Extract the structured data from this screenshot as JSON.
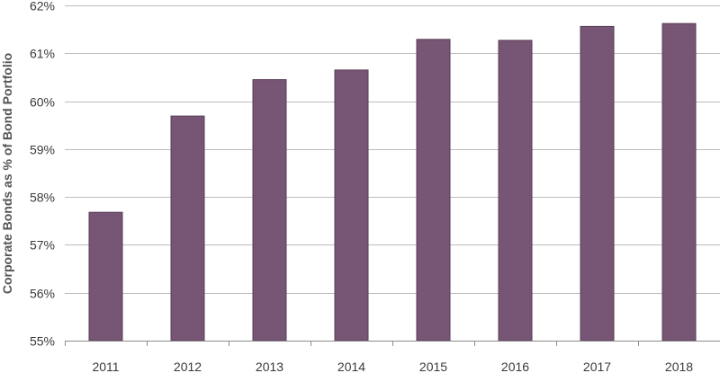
{
  "chart_data": {
    "type": "bar",
    "title": "",
    "xlabel": "",
    "ylabel": "Corporate Bonds as % of Bond Portfolio",
    "categories": [
      "2011",
      "2012",
      "2013",
      "2014",
      "2015",
      "2016",
      "2017",
      "2018"
    ],
    "values": [
      57.68,
      59.69,
      60.45,
      60.65,
      61.29,
      61.27,
      61.56,
      61.62
    ],
    "ylim": [
      55,
      62
    ],
    "yticks": [
      55,
      56,
      57,
      58,
      59,
      60,
      61,
      62
    ],
    "ytick_labels": [
      "55%",
      "56%",
      "57%",
      "58%",
      "59%",
      "60%",
      "61%",
      "62%"
    ],
    "grid": true,
    "bar_color": "#775574",
    "bar_edge_color": "#5a3e58",
    "grid_color": "#bdbdbd"
  }
}
